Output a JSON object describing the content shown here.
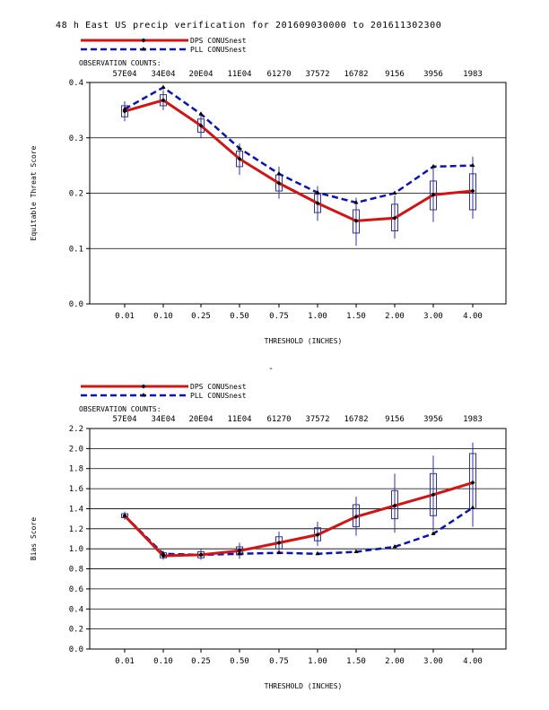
{
  "title": "48 h East US precip verification for 201609030000 to 201611302300",
  "separator": "-",
  "colors": {
    "dps": "#d21414",
    "pll": "#0a14b4",
    "box": "#3030a0",
    "text": "#000000"
  },
  "chart_data": [
    {
      "type": "line",
      "title": "48 h East US precip verification for 201609030000 to 201611302300",
      "xlabel": "THRESHOLD (INCHES)",
      "ylabel": "Equitable Threat Score",
      "categories": [
        "0.01",
        "0.10",
        "0.25",
        "0.50",
        "0.75",
        "1.00",
        "1.50",
        "2.00",
        "3.00",
        "4.00"
      ],
      "ylim": [
        0,
        0.4
      ],
      "yticks": [
        "0.0",
        "0.1",
        "0.2",
        "0.3",
        "0.4"
      ],
      "yticks_values": [
        0,
        0.1,
        0.2,
        0.3,
        0.4
      ],
      "grid": true,
      "obs_label": "OBSERVATION COUNTS:",
      "obs_counts": [
        "57E04",
        "34E04",
        "20E04",
        "11E04",
        "61270",
        "37572",
        "16782",
        "9156",
        "3956",
        "1983"
      ],
      "series": [
        {
          "name": "DPS CONUSnest",
          "values": [
            0.348,
            0.368,
            0.322,
            0.262,
            0.218,
            0.182,
            0.15,
            0.155,
            0.197,
            0.204
          ]
        },
        {
          "name": "PLL CONUSnest",
          "values": [
            0.352,
            0.391,
            0.343,
            0.281,
            0.235,
            0.201,
            0.183,
            0.2,
            0.248,
            0.25
          ]
        }
      ],
      "boxes": [
        {
          "lo": 0.338,
          "hi": 0.358,
          "wlo": 0.33,
          "whi": 0.366
        },
        {
          "lo": 0.358,
          "hi": 0.378,
          "wlo": 0.35,
          "whi": 0.386
        },
        {
          "lo": 0.31,
          "hi": 0.334,
          "wlo": 0.3,
          "whi": 0.344
        },
        {
          "lo": 0.248,
          "hi": 0.276,
          "wlo": 0.233,
          "whi": 0.29
        },
        {
          "lo": 0.204,
          "hi": 0.233,
          "wlo": 0.19,
          "whi": 0.248
        },
        {
          "lo": 0.165,
          "hi": 0.198,
          "wlo": 0.15,
          "whi": 0.213
        },
        {
          "lo": 0.128,
          "hi": 0.17,
          "wlo": 0.105,
          "whi": 0.192
        },
        {
          "lo": 0.132,
          "hi": 0.18,
          "wlo": 0.118,
          "whi": 0.196
        },
        {
          "lo": 0.17,
          "hi": 0.222,
          "wlo": 0.148,
          "whi": 0.25
        },
        {
          "lo": 0.17,
          "hi": 0.235,
          "wlo": 0.154,
          "whi": 0.266
        }
      ]
    },
    {
      "type": "line",
      "xlabel": "THRESHOLD (INCHES)",
      "ylabel": "Bias Score",
      "categories": [
        "0.01",
        "0.10",
        "0.25",
        "0.50",
        "0.75",
        "1.00",
        "1.50",
        "2.00",
        "3.00",
        "4.00"
      ],
      "ylim": [
        0,
        2.2
      ],
      "yticks": [
        "0.0",
        "0.2",
        "0.4",
        "0.6",
        "0.8",
        "1.0",
        "1.2",
        "1.4",
        "1.6",
        "1.8",
        "2.0",
        "2.2"
      ],
      "yticks_values": [
        0,
        0.2,
        0.4,
        0.6,
        0.8,
        1.0,
        1.2,
        1.4,
        1.6,
        1.8,
        2.0,
        2.2
      ],
      "grid": true,
      "obs_label": "OBSERVATION COUNTS:",
      "obs_counts": [
        "57E04",
        "34E04",
        "20E04",
        "11E04",
        "61270",
        "37572",
        "16782",
        "9156",
        "3956",
        "1983"
      ],
      "series": [
        {
          "name": "DPS CONUSnest",
          "values": [
            1.33,
            0.93,
            0.94,
            0.98,
            1.06,
            1.14,
            1.32,
            1.43,
            1.54,
            1.66
          ]
        },
        {
          "name": "PLL CONUSnest",
          "values": [
            1.33,
            0.95,
            0.94,
            0.95,
            0.96,
            0.95,
            0.97,
            1.02,
            1.15,
            1.41
          ]
        }
      ],
      "boxes": [
        {
          "lo": 1.31,
          "hi": 1.35,
          "wlo": 1.29,
          "whi": 1.37
        },
        {
          "lo": 0.91,
          "hi": 0.96,
          "wlo": 0.89,
          "whi": 0.98
        },
        {
          "lo": 0.91,
          "hi": 0.97,
          "wlo": 0.89,
          "whi": 1.0
        },
        {
          "lo": 0.94,
          "hi": 1.02,
          "wlo": 0.9,
          "whi": 1.06
        },
        {
          "lo": 1.0,
          "hi": 1.12,
          "wlo": 0.96,
          "whi": 1.17
        },
        {
          "lo": 1.08,
          "hi": 1.21,
          "wlo": 1.03,
          "whi": 1.27
        },
        {
          "lo": 1.22,
          "hi": 1.44,
          "wlo": 1.13,
          "whi": 1.52
        },
        {
          "lo": 1.3,
          "hi": 1.58,
          "wlo": 1.16,
          "whi": 1.75
        },
        {
          "lo": 1.33,
          "hi": 1.75,
          "wlo": 1.18,
          "whi": 1.93
        },
        {
          "lo": 1.4,
          "hi": 1.95,
          "wlo": 1.22,
          "whi": 2.06
        }
      ]
    }
  ]
}
